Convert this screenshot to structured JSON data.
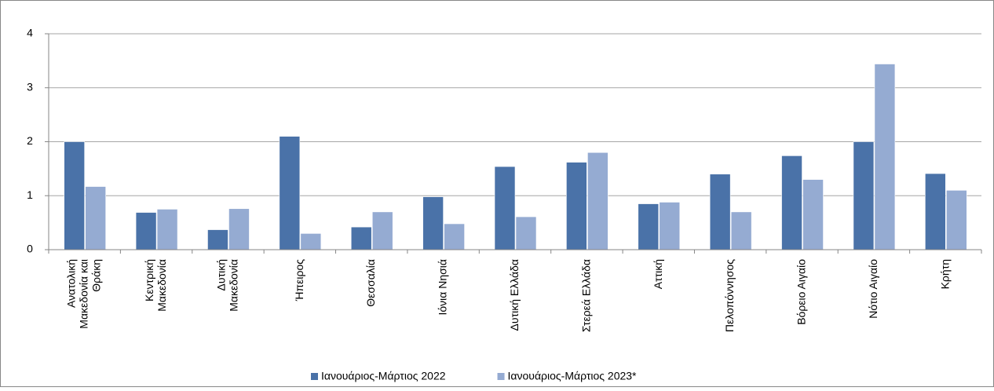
{
  "chart_data": {
    "type": "bar",
    "categories": [
      "Ανατολική Μακεδονία και Θράκη",
      "Κεντρική Μακεδονία",
      "Δυτική Μακεδονία",
      "Ήπειρος",
      "Θεσσαλία",
      "Ιόνια Νησιά",
      "Δυτική Ελλάδα",
      "Στερεά Ελλάδα",
      "Αττική",
      "Πελοπόννησος",
      "Βόρειο Αιγαίο",
      "Νότιο Αιγαίο",
      "Κρήτη"
    ],
    "series": [
      {
        "name": "Ιανουάριος-Μάρτιος 2022",
        "color": "#4a72a8",
        "values": [
          2.0,
          0.69,
          0.37,
          2.1,
          0.42,
          0.98,
          1.54,
          1.62,
          0.85,
          1.4,
          1.74,
          2.0,
          1.41
        ]
      },
      {
        "name": "Ιανουάριος-Μάρτιος 2023*",
        "color": "#95abd2",
        "values": [
          1.17,
          0.75,
          0.76,
          0.3,
          0.7,
          0.48,
          0.61,
          1.8,
          0.88,
          0.7,
          1.3,
          3.44,
          1.1
        ]
      }
    ],
    "ylim": [
      0,
      4
    ],
    "yticks": [
      0,
      1,
      2,
      3,
      4
    ],
    "grid": true,
    "legend": "bottom"
  }
}
